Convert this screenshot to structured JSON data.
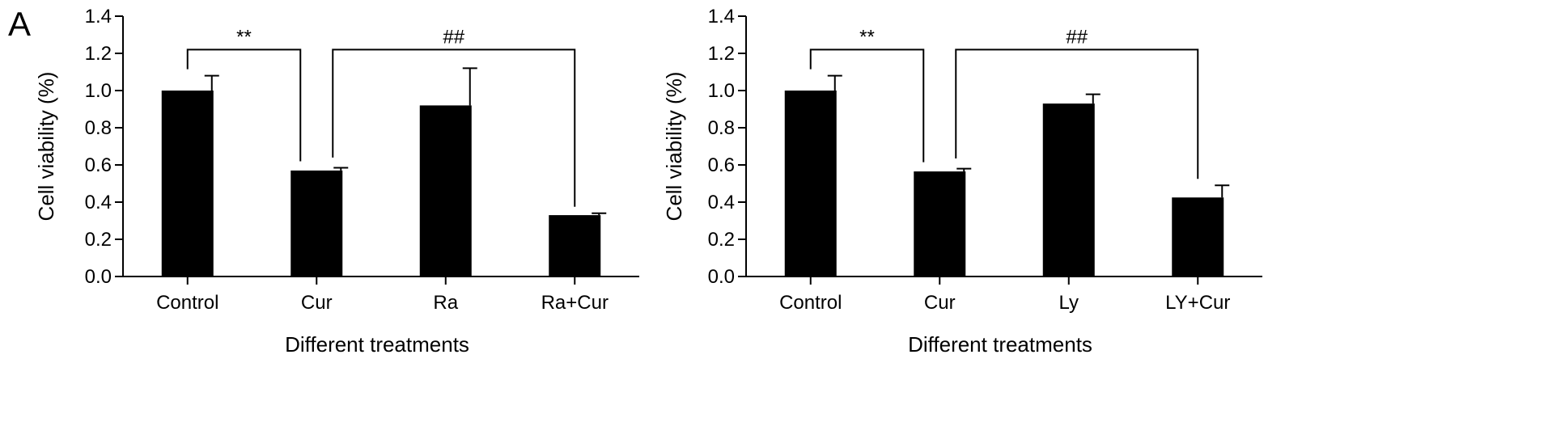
{
  "panel_label": "A",
  "chart_data": [
    {
      "type": "bar",
      "categories": [
        "Control",
        "Cur",
        "Ra",
        "Ra+Cur"
      ],
      "values": [
        1.0,
        0.57,
        0.92,
        0.33
      ],
      "errors": [
        0.08,
        0.015,
        0.2,
        0.01
      ],
      "xlabel": "Different treatments",
      "ylabel": "Cell viability (%)",
      "ylim": [
        0.0,
        1.4
      ],
      "yticks": [
        "0.0",
        "0.2",
        "0.4",
        "0.6",
        "0.8",
        "1.0",
        "1.2",
        "1.4"
      ],
      "bar_color": "#000000",
      "grid": false,
      "annotations": [
        {
          "from": 0,
          "to": 1,
          "label": "**"
        },
        {
          "from": 1,
          "to": 3,
          "label": "##"
        }
      ]
    },
    {
      "type": "bar",
      "categories": [
        "Control",
        "Cur",
        "Ly",
        "LY+Cur"
      ],
      "values": [
        1.0,
        0.565,
        0.93,
        0.425
      ],
      "errors": [
        0.08,
        0.015,
        0.05,
        0.065
      ],
      "xlabel": "Different treatments",
      "ylabel": "Cell viability (%)",
      "ylim": [
        0.0,
        1.4
      ],
      "yticks": [
        "0.0",
        "0.2",
        "0.4",
        "0.6",
        "0.8",
        "1.0",
        "1.2",
        "1.4"
      ],
      "bar_color": "#000000",
      "grid": false,
      "annotations": [
        {
          "from": 0,
          "to": 1,
          "label": "**"
        },
        {
          "from": 1,
          "to": 3,
          "label": "##"
        }
      ]
    }
  ]
}
